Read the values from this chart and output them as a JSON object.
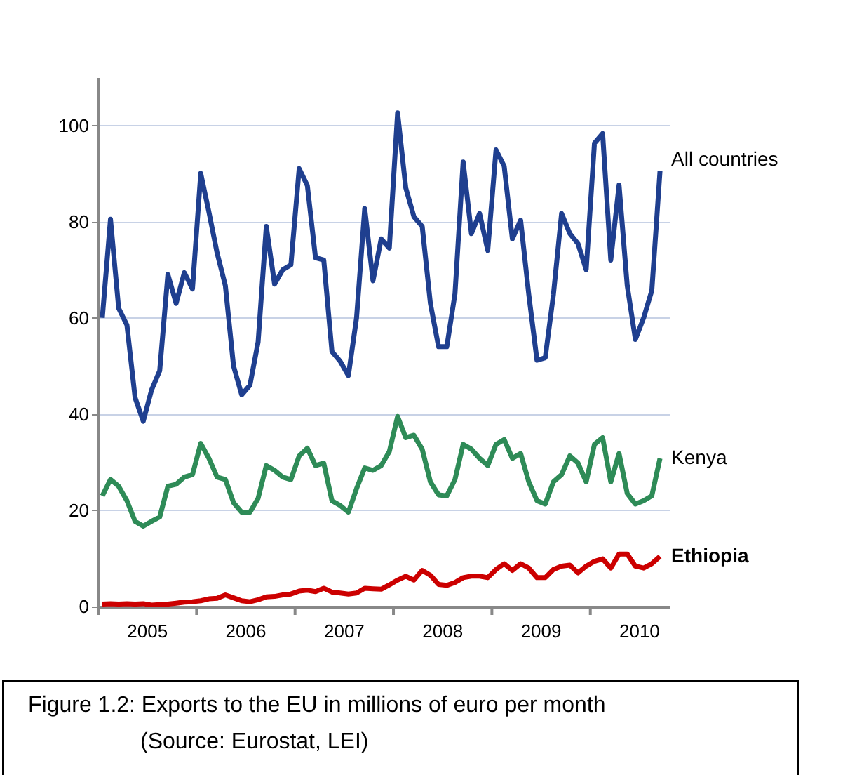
{
  "chart_data": {
    "type": "line",
    "x": [
      2005.042,
      2005.125,
      2005.208,
      2005.292,
      2005.375,
      2005.458,
      2005.542,
      2005.625,
      2005.708,
      2005.792,
      2005.875,
      2005.958,
      2006.042,
      2006.125,
      2006.208,
      2006.292,
      2006.375,
      2006.458,
      2006.542,
      2006.625,
      2006.708,
      2006.792,
      2006.875,
      2006.958,
      2007.042,
      2007.125,
      2007.208,
      2007.292,
      2007.375,
      2007.458,
      2007.542,
      2007.625,
      2007.708,
      2007.792,
      2007.875,
      2007.958,
      2008.042,
      2008.125,
      2008.208,
      2008.292,
      2008.375,
      2008.458,
      2008.542,
      2008.625,
      2008.708,
      2008.792,
      2008.875,
      2008.958,
      2009.042,
      2009.125,
      2009.208,
      2009.292,
      2009.375,
      2009.458,
      2009.542,
      2009.625,
      2009.708,
      2009.792,
      2009.875,
      2009.958,
      2010.042,
      2010.125,
      2010.208,
      2010.292,
      2010.375,
      2010.458,
      2010.542,
      2010.625,
      2010.708
    ],
    "series": [
      {
        "name": "All countries",
        "color": "#1f3f8f",
        "values": [
          60,
          80.5,
          62,
          58.5,
          43.4,
          38.5,
          45,
          49,
          69,
          63,
          69.4,
          66,
          90,
          82,
          73.5,
          66.7,
          50,
          44,
          46,
          55,
          79,
          67,
          70,
          71,
          91,
          87.5,
          72.5,
          72,
          53,
          51,
          48,
          60,
          82.7,
          67.7,
          76.4,
          74.5,
          102.6,
          87,
          81,
          79,
          63,
          54,
          54,
          65,
          92.4,
          77.5,
          81.7,
          74,
          94.9,
          91.5,
          76.4,
          80.3,
          64.8,
          51.2,
          51.7,
          64.8,
          81.7,
          77.5,
          75.4,
          70,
          96.3,
          98.3,
          72,
          87.6,
          66.7,
          55.5,
          60,
          65.7,
          90.5
        ]
      },
      {
        "name": "Kenya",
        "color": "#2e8b57",
        "values": [
          23,
          26.4,
          25,
          22,
          17.7,
          16.7,
          17.7,
          18.6,
          25,
          25.4,
          26.9,
          27.4,
          33.9,
          30.8,
          26.9,
          26.4,
          21.6,
          19.6,
          19.6,
          22.5,
          29.3,
          28.3,
          26.9,
          26.4,
          31.3,
          32.9,
          29.3,
          29.8,
          22,
          21,
          19.6,
          24.5,
          28.8,
          28.3,
          29.3,
          32.2,
          39.5,
          35.1,
          35.6,
          32.7,
          25.9,
          23.2,
          23,
          26.4,
          33.7,
          32.7,
          30.8,
          29.3,
          33.7,
          34.7,
          30.8,
          31.8,
          25.9,
          22,
          21.3,
          25.9,
          27.4,
          31.3,
          29.8,
          25.9,
          33.7,
          35.1,
          25.9,
          31.8,
          23.5,
          21.3,
          22,
          23,
          30.8
        ]
      },
      {
        "name": "Ethiopia",
        "color": "#cc0000",
        "values": [
          0.5,
          0.6,
          0.5,
          0.6,
          0.5,
          0.6,
          0.3,
          0.4,
          0.5,
          0.7,
          0.9,
          1,
          1.2,
          1.6,
          1.7,
          2.4,
          1.8,
          1.2,
          1,
          1.4,
          2,
          2.1,
          2.4,
          2.6,
          3.2,
          3.4,
          3.1,
          3.8,
          3,
          2.8,
          2.6,
          2.8,
          3.8,
          3.7,
          3.6,
          4.5,
          5.5,
          6.3,
          5.5,
          7.5,
          6.5,
          4.6,
          4.4,
          5,
          6,
          6.3,
          6.3,
          6,
          7.7,
          8.9,
          7.5,
          8.9,
          8,
          6,
          6,
          7.7,
          8.4,
          8.6,
          7,
          8.4,
          9.4,
          9.9,
          8,
          10.9,
          10.9,
          8.4,
          8,
          8.9,
          10.4
        ]
      }
    ],
    "xlim": [
      2005,
      2010.8
    ],
    "xticks": [
      {
        "value": 2005,
        "label": null
      },
      {
        "value": 2005.5,
        "label": "2005"
      },
      {
        "value": 2006,
        "label": null
      },
      {
        "value": 2006.5,
        "label": "2006"
      },
      {
        "value": 2007,
        "label": null
      },
      {
        "value": 2007.5,
        "label": "2007"
      },
      {
        "value": 2008,
        "label": null
      },
      {
        "value": 2008.5,
        "label": "2008"
      },
      {
        "value": 2009,
        "label": null
      },
      {
        "value": 2009.5,
        "label": "2009"
      },
      {
        "value": 2010,
        "label": null
      },
      {
        "value": 2010.5,
        "label": "2010"
      }
    ],
    "ylim": [
      0,
      110
    ],
    "yticks": [
      0,
      20,
      40,
      60,
      80,
      100
    ],
    "grid": "y",
    "annotations": [
      "Figure 1.2: Exports to the EU in millions of euro per month",
      "(Source: Eurostat, LEI)"
    ]
  }
}
